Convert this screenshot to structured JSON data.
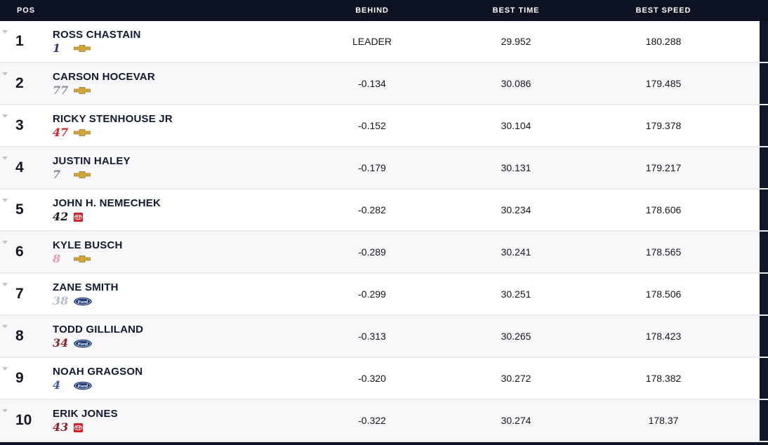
{
  "table": {
    "columns": {
      "pos": "POS",
      "behind": "BEHIND",
      "best_time": "BEST TIME",
      "best_speed": "BEST SPEED"
    },
    "rows": [
      {
        "pos": "1",
        "driver": "ROSS CHASTAIN",
        "number": "1",
        "number_color": "#243b6b",
        "manufacturer": "chevrolet",
        "manufacturer_icon": "chevrolet-logo",
        "behind": "LEADER",
        "best_time": "29.952",
        "best_speed": "180.288"
      },
      {
        "pos": "2",
        "driver": "CARSON HOCEVAR",
        "number": "77",
        "number_color": "#8d909a",
        "manufacturer": "chevrolet",
        "manufacturer_icon": "chevrolet-logo",
        "behind": "-0.134",
        "best_time": "30.086",
        "best_speed": "179.485"
      },
      {
        "pos": "3",
        "driver": "RICKY STENHOUSE JR",
        "number": "47",
        "number_color": "#d6222c",
        "manufacturer": "chevrolet",
        "manufacturer_icon": "chevrolet-logo",
        "behind": "-0.152",
        "best_time": "30.104",
        "best_speed": "179.378"
      },
      {
        "pos": "4",
        "driver": "JUSTIN HALEY",
        "number": "7",
        "number_color": "#87898f",
        "manufacturer": "chevrolet",
        "manufacturer_icon": "chevrolet-logo",
        "behind": "-0.179",
        "best_time": "30.131",
        "best_speed": "179.217"
      },
      {
        "pos": "5",
        "driver": "JOHN H. NEMECHEK",
        "number": "42",
        "number_color": "#17171c",
        "manufacturer": "toyota",
        "manufacturer_icon": "toyota-logo",
        "behind": "-0.282",
        "best_time": "30.234",
        "best_speed": "178.606"
      },
      {
        "pos": "6",
        "driver": "KYLE BUSCH",
        "number": "8",
        "number_color": "#dfa0a8",
        "manufacturer": "chevrolet",
        "manufacturer_icon": "chevrolet-logo",
        "behind": "-0.289",
        "best_time": "30.241",
        "best_speed": "178.565"
      },
      {
        "pos": "7",
        "driver": "ZANE SMITH",
        "number": "38",
        "number_color": "#b8bcc4",
        "manufacturer": "ford",
        "manufacturer_icon": "ford-logo",
        "behind": "-0.299",
        "best_time": "30.251",
        "best_speed": "178.506"
      },
      {
        "pos": "8",
        "driver": "TODD GILLILAND",
        "number": "34",
        "number_color": "#8f2026",
        "manufacturer": "ford",
        "manufacturer_icon": "ford-logo",
        "behind": "-0.313",
        "best_time": "30.265",
        "best_speed": "178.423"
      },
      {
        "pos": "9",
        "driver": "NOAH GRAGSON",
        "number": "4",
        "number_color": "#3a5a9a",
        "manufacturer": "ford",
        "manufacturer_icon": "ford-logo",
        "behind": "-0.320",
        "best_time": "30.272",
        "best_speed": "178.382"
      },
      {
        "pos": "10",
        "driver": "ERIK JONES",
        "number": "43",
        "number_color": "#8e1d1f",
        "manufacturer": "toyota",
        "manufacturer_icon": "toyota-logo",
        "behind": "-0.322",
        "best_time": "30.274",
        "best_speed": "178.37"
      }
    ]
  },
  "colors": {
    "header_bg": "#0c1222",
    "row_border": "#ebebee",
    "right_block": "#10182b",
    "chevrolet_gold": "#d2a63c",
    "chevrolet_gold_dark": "#9a7a22",
    "ford_blue": "#1f3d7c",
    "ford_blue_dark": "#13254d",
    "toyota_red": "#d81e26",
    "position_change_gray": "#c2c4ca"
  }
}
